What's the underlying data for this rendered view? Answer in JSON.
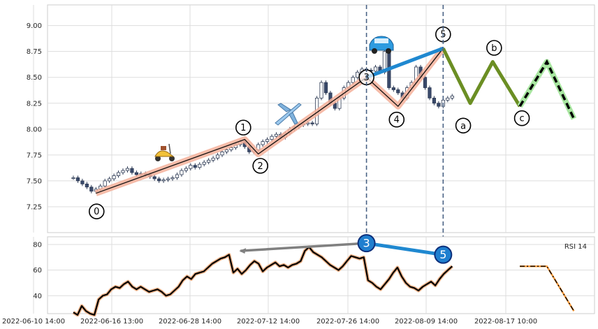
{
  "chart_data": {
    "type": "candlestick",
    "title": "",
    "x_ticks": [
      "2022-06-10 14:00",
      "2022-06-16 13:00",
      "2022-06-28 14:00",
      "2022-07-12 14:00",
      "2022-07-26 14:00",
      "2022-08-09 14:00",
      "2022-08-17 10:00"
    ],
    "y_ticks": [
      "7.25",
      "7.50",
      "7.75",
      "8.00",
      "8.25",
      "8.50",
      "8.75",
      "9.00"
    ],
    "ylim": [
      7.0,
      9.2
    ],
    "rsi_ticks": [
      "40",
      "60",
      "80"
    ],
    "rsi_ylim": [
      26,
      86
    ],
    "rsi_legend": "RSI 14",
    "price_series": [
      7.53,
      7.5,
      7.47,
      7.44,
      7.4,
      7.42,
      7.45,
      7.5,
      7.52,
      7.55,
      7.58,
      7.6,
      7.62,
      7.58,
      7.56,
      7.57,
      7.56,
      7.54,
      7.52,
      7.5,
      7.51,
      7.52,
      7.53,
      7.56,
      7.6,
      7.62,
      7.65,
      7.63,
      7.66,
      7.68,
      7.7,
      7.72,
      7.75,
      7.78,
      7.8,
      7.82,
      7.85,
      7.88,
      7.83,
      7.78,
      7.8,
      7.85,
      7.88,
      7.9,
      7.93,
      7.95,
      7.92,
      7.96,
      8.0,
      8.02,
      8.04,
      8.05,
      8.06,
      8.05,
      8.3,
      8.45,
      8.35,
      8.25,
      8.2,
      8.3,
      8.4,
      8.45,
      8.5,
      8.55,
      8.58,
      8.57,
      8.56,
      8.6,
      8.55,
      8.75,
      8.4,
      8.38,
      8.35,
      8.3,
      8.4,
      8.45,
      8.6,
      8.5,
      8.4,
      8.3,
      8.25,
      8.22,
      8.28,
      8.3,
      8.32
    ],
    "rsi_series": [
      27,
      25,
      32,
      28,
      26,
      25,
      37,
      40,
      41,
      45,
      47,
      46,
      49,
      51,
      47,
      45,
      47,
      45,
      43,
      44,
      45,
      43,
      40,
      41,
      44,
      47,
      52,
      55,
      53,
      57,
      58,
      59,
      62,
      65,
      67,
      69,
      70,
      72,
      58,
      61,
      57,
      60,
      64,
      67,
      65,
      59,
      62,
      64,
      66,
      63,
      64,
      62,
      64,
      65,
      67,
      75,
      78,
      74,
      72,
      70,
      67,
      64,
      62,
      60,
      63,
      67,
      71,
      70,
      69,
      70,
      52,
      50,
      47,
      45,
      49,
      53,
      58,
      62,
      55,
      50,
      47,
      46,
      44,
      47,
      49,
      51,
      48,
      53,
      57,
      60,
      63
    ],
    "wave_points": [
      {
        "label": "0",
        "value": 7.38
      },
      {
        "label": "1",
        "value": 7.9
      },
      {
        "label": "2",
        "value": 7.76
      },
      {
        "label": "3",
        "value": 8.5
      },
      {
        "label": "4",
        "value": 8.22
      },
      {
        "label": "5",
        "value": 8.78
      }
    ],
    "corrective_points": [
      {
        "label": "a",
        "value": 8.25
      },
      {
        "label": "b",
        "value": 8.65
      },
      {
        "label": "c",
        "value": 8.22
      }
    ],
    "projection_points": [
      {
        "value": 8.22
      },
      {
        "value": 8.65
      },
      {
        "value": 8.1
      }
    ],
    "rsi_markers": [
      {
        "label": "3",
        "value": 81
      },
      {
        "label": "5",
        "value": 72
      }
    ],
    "rsi_divergence_start": 75,
    "icons": [
      "scooter-icon",
      "airplane-icon",
      "car-icon"
    ]
  }
}
